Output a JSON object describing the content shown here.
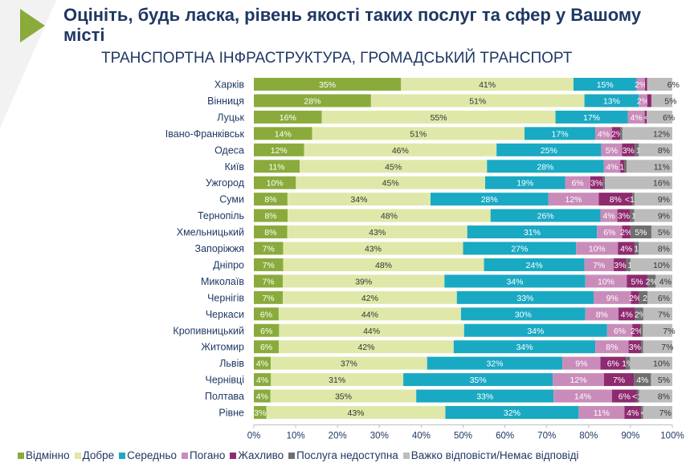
{
  "title": "Оцініть, будь ласка, рівень якості таких послуг та сфер у Вашому місті",
  "subtitle": "ТРАНСПОРТНА ІНФРАСТРУКТУРА, ГРОМАДСЬКИЙ ТРАНСПОРТ",
  "chart_data": {
    "type": "bar",
    "orientation": "horizontal",
    "stacked": true,
    "xlim": [
      0,
      100
    ],
    "x_ticks": [
      "0%",
      "10%",
      "20%",
      "30%",
      "40%",
      "50%",
      "60%",
      "70%",
      "80%",
      "90%",
      "100%"
    ],
    "legend_position": "bottom",
    "grid": false,
    "categories": [
      "Харків",
      "Вінниця",
      "Луцьк",
      "Івано-Франківськ",
      "Одеса",
      "Київ",
      "Ужгород",
      "Суми",
      "Тернопіль",
      "Хмельницький",
      "Запоріжжя",
      "Дніпро",
      "Миколаїв",
      "Чернігів",
      "Черкаси",
      "Кропивницький",
      "Житомир",
      "Львів",
      "Чернівці",
      "Полтава",
      "Рівне"
    ],
    "series": [
      {
        "name": "Відмінно",
        "color": "#8aab3c",
        "values": [
          35,
          28,
          16,
          14,
          12,
          11,
          10,
          8,
          8,
          8,
          7,
          7,
          7,
          7,
          6,
          6,
          6,
          4,
          4,
          4,
          3
        ]
      },
      {
        "name": "Добре",
        "color": "#dfe8a9",
        "values": [
          41,
          51,
          55,
          51,
          46,
          45,
          45,
          34,
          48,
          43,
          43,
          48,
          39,
          42,
          44,
          44,
          42,
          37,
          31,
          35,
          43
        ]
      },
      {
        "name": "Середньо",
        "color": "#1aa9c3",
        "values": [
          15,
          13,
          17,
          17,
          25,
          28,
          19,
          28,
          26,
          31,
          27,
          24,
          34,
          33,
          30,
          34,
          34,
          32,
          35,
          33,
          32
        ]
      },
      {
        "name": "Погано",
        "color": "#c98cba",
        "values": [
          2,
          2,
          4,
          4,
          5,
          4,
          6,
          12,
          4,
          6,
          10,
          7,
          10,
          9,
          8,
          6,
          8,
          9,
          12,
          14,
          11
        ]
      },
      {
        "name": "Жахливо",
        "color": "#8e2a6f",
        "values": [
          "<1",
          1,
          "<1",
          2,
          3,
          1,
          3,
          8,
          3,
          2,
          4,
          3,
          5,
          2,
          4,
          2,
          3,
          6,
          7,
          6,
          4
        ]
      },
      {
        "name": "Послуга недоступна",
        "color": "#6f6f6f",
        "values": [
          null,
          null,
          null,
          "<1",
          1,
          "<1",
          "<1",
          "<1",
          1,
          5,
          1,
          1,
          2,
          2,
          2,
          "<1",
          "<1",
          1,
          4,
          "<1",
          "<1"
        ]
      },
      {
        "name": "Важко відповісти/Немає відповіді",
        "color": "#bcbcbc",
        "values": [
          6,
          5,
          6,
          12,
          8,
          11,
          16,
          9,
          9,
          5,
          8,
          10,
          4,
          6,
          7,
          7,
          7,
          10,
          5,
          8,
          7
        ]
      }
    ]
  }
}
